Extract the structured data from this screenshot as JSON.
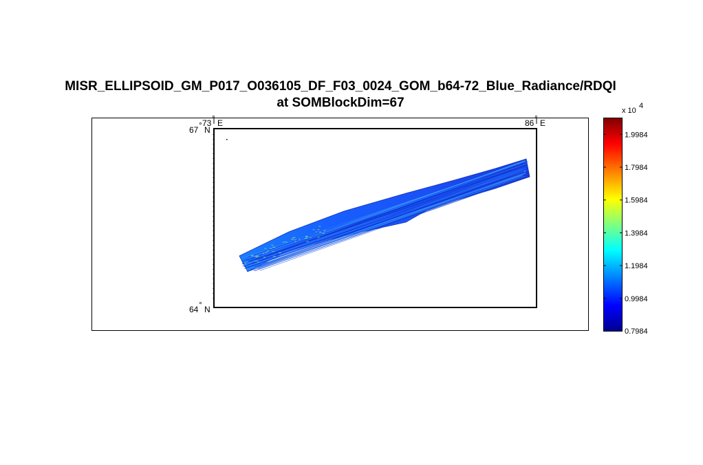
{
  "title": {
    "line1": "MISR_ELLIPSOID_GM_P017_O036105_DF_F03_0024_GOM_b64-72_Blue_Radiance/RDQI",
    "line2": "at SOMBlockDim=67"
  },
  "map": {
    "lon_labels": [
      {
        "deg": "73",
        "hemi": "E"
      },
      {
        "deg": "86",
        "hemi": "E"
      }
    ],
    "lat_labels": [
      {
        "deg": "67",
        "hemi": "N"
      },
      {
        "deg": "64",
        "hemi": "N"
      }
    ]
  },
  "colorbar": {
    "exponent_label": "x 10",
    "exponent_power": "4",
    "tick_labels": [
      "1.9984",
      "1.7984",
      "1.5984",
      "1.3984",
      "1.1984",
      "0.9984",
      "0.7984"
    ],
    "colormap": "jet",
    "stops": [
      "#00008f",
      "#0000ff",
      "#00ffff",
      "#ffff00",
      "#ff0000",
      "#800000"
    ]
  },
  "chart_data": {
    "type": "heatmap",
    "title": "MISR_ELLIPSOID_GM_P017_O036105_DF_F03_0024_GOM_b64-72_Blue_Radiance/RDQI at SOMBlockDim=67",
    "projection": "map",
    "lon_range": [
      73,
      86
    ],
    "lat_range": [
      64,
      67
    ],
    "color_range": [
      7984,
      20984
    ],
    "colorbar_ticks": [
      19984,
      17984,
      15984,
      13984,
      11984,
      9984,
      7984
    ],
    "swath": {
      "description_values": "Blue radiance along a diagonal swath rising to the east",
      "start": {
        "lon": 74.1,
        "lat": 64.7
      },
      "end": {
        "lon": 85.6,
        "lat": 66.7
      },
      "typical_value": 9984,
      "max_value_observed": 15984
    }
  }
}
